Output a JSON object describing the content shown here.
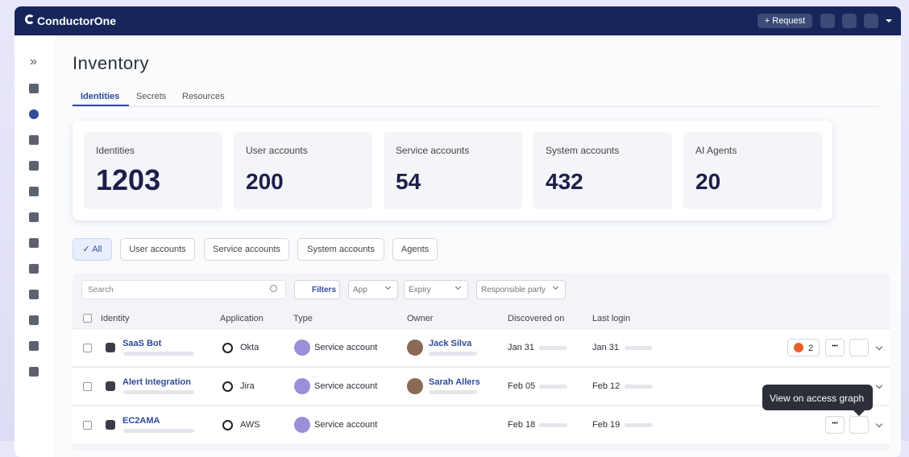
{
  "header": {
    "brand": "ConductorOne",
    "request": "Request"
  },
  "page": {
    "title": "Inventory",
    "tabs": [
      "Identities",
      "Secrets",
      "Resources"
    ]
  },
  "stats": [
    {
      "label": "Identities",
      "value": 1203
    },
    {
      "label": "User accounts",
      "value": 200
    },
    {
      "label": "Service accounts",
      "value": 54
    },
    {
      "label": "System accounts",
      "value": 432
    },
    {
      "label": "AI Agents",
      "value": 20
    }
  ],
  "chips": [
    "All",
    "User accounts",
    "Service accounts",
    "System accounts",
    "Agents"
  ],
  "toolbar": {
    "search": "Search",
    "filters": "Filters",
    "dropdowns": [
      "App",
      "Expiry",
      "Responsible party"
    ]
  },
  "table": {
    "columns": [
      "Identity",
      "Application",
      "Type",
      "Owner",
      "Discovered on",
      "Last login"
    ],
    "rows": [
      {
        "identity": "SaaS Bot",
        "application": "Okta",
        "type": "Service account",
        "owner": "Jack Silva",
        "discovered": "Jan 31",
        "last_login": "Jan 31",
        "badge": 2
      },
      {
        "identity": "Alert Integration",
        "application": "Jira",
        "type": "Service account",
        "owner": "Sarah Allers",
        "discovered": "Feb 05",
        "last_login": "Feb 12"
      },
      {
        "identity": "EC2AMA",
        "application": "AWS",
        "type": "Service account",
        "discovered": "Feb 18",
        "last_login": "Feb 19"
      }
    ]
  },
  "tooltip": "View on access graph"
}
